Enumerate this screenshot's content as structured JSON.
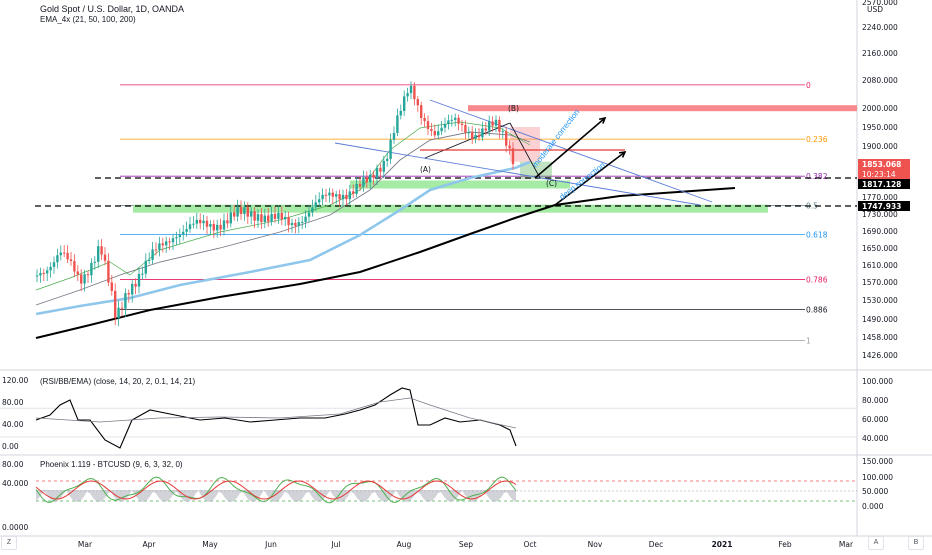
{
  "header": {
    "symbol_line": "Gold Spot / U.S. Dollar, 1D, OANDA",
    "indicator_line": "EMA_4x (21, 50, 100, 200)"
  },
  "price_axis": {
    "labels": [
      {
        "v": 2570,
        "t": "2570.000"
      },
      {
        "v": 2240,
        "t": "2240.000"
      },
      {
        "v": 2160,
        "t": "2160.000"
      },
      {
        "v": 2080,
        "t": "2080.000"
      },
      {
        "v": 2000,
        "t": "2000.000"
      },
      {
        "v": 1950,
        "t": "1950.000"
      },
      {
        "v": 1900,
        "t": "1900.000"
      },
      {
        "v": 1770,
        "t": "1770.000"
      },
      {
        "v": 1730,
        "t": "1730.000"
      },
      {
        "v": 1690,
        "t": "1690.000"
      },
      {
        "v": 1650,
        "t": "1650.000"
      },
      {
        "v": 1610,
        "t": "1610.000"
      },
      {
        "v": 1570,
        "t": "1570.000"
      },
      {
        "v": 1530,
        "t": "1530.000"
      },
      {
        "v": 1490,
        "t": "1490.000"
      },
      {
        "v": 1458,
        "t": "1458.000"
      },
      {
        "v": 1426,
        "t": "1426.000"
      }
    ],
    "currency": "USD",
    "last_price": "1853.068",
    "countdown": "10:23:14",
    "level_1": "1817.128",
    "level_2": "1747.933"
  },
  "fib_levels": [
    {
      "label": "0",
      "price": 2066,
      "color": "#e91e63"
    },
    {
      "label": "0.236",
      "price": 1918,
      "color": "#ff9800"
    },
    {
      "label": "0.382",
      "price": 1823,
      "color": "#9c27b0"
    },
    {
      "label": "0.5",
      "price": 1750,
      "color": "#607d8b"
    },
    {
      "label": "0.618",
      "price": 1682,
      "color": "#2196f3"
    },
    {
      "label": "0.786",
      "price": 1576,
      "color": "#e91e63"
    },
    {
      "label": "0.886",
      "price": 1510,
      "color": "#131722"
    },
    {
      "label": "1",
      "price": 1452,
      "color": "#9e9e9e"
    }
  ],
  "annotations": {
    "wave_a": "(A)",
    "wave_b": "(B)",
    "wave_c": "(C)",
    "moderate": "moderate correction",
    "deep": "deep correction"
  },
  "rsi_panel": {
    "title": "(RSI/BB/EMA) (close, 14, 20, 2, 0.1, 14, 21)",
    "left_labels": [
      "120.00",
      "80.00",
      "40.00",
      "0.00"
    ],
    "right_labels": [
      "100.000",
      "80.000",
      "60.000",
      "40.000"
    ]
  },
  "phoenix_panel": {
    "title": "Phoenix 1.119 - BTCUSD (9, 6, 3, 32, 0)",
    "left_labels": [
      "80.00",
      "40.000",
      "0.0000"
    ],
    "right_labels": [
      "150.000",
      "100.000",
      "50.000",
      "0.000"
    ]
  },
  "time_axis": {
    "labels": [
      "Mar",
      "Apr",
      "May",
      "Jun",
      "Jul",
      "Aug",
      "Sep",
      "Oct",
      "Nov",
      "Dec",
      "2021",
      "Feb",
      "Mar"
    ]
  },
  "buttons": {
    "left": "Z",
    "auto": "A",
    "settings": "B"
  },
  "chart_data": {
    "type": "candlestick",
    "symbol": "Gold Spot / U.S. Dollar",
    "timeframe": "1D",
    "x": [
      "2020-02",
      "2020-03",
      "2020-04",
      "2020-05",
      "2020-06",
      "2020-07",
      "2020-08",
      "2020-09"
    ],
    "close": [
      1585,
      1580,
      1705,
      1730,
      1770,
      1975,
      1965,
      1853
    ],
    "high": [
      1690,
      1705,
      1745,
      1765,
      1790,
      1985,
      2075,
      2000
    ],
    "low": [
      1550,
      1452,
      1575,
      1680,
      1670,
      1765,
      1865,
      1850
    ],
    "last_price": 1853.068
  }
}
